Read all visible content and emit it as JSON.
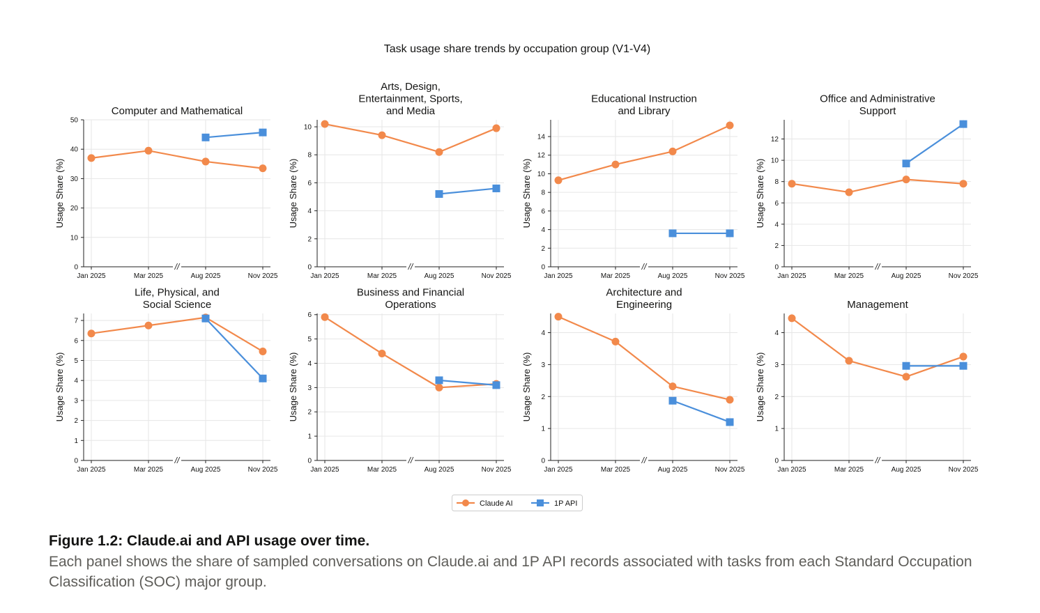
{
  "figure": {
    "suptitle": "Task usage share trends by occupation group (V1-V4)",
    "legend": [
      {
        "label": "Claude AI",
        "color": "#f2894b",
        "marker": "circle"
      },
      {
        "label": "1P API",
        "color": "#4a8fdb",
        "marker": "square"
      }
    ]
  },
  "caption": {
    "title": "Figure 1.2: Claude.ai and API usage over time.",
    "body": "Each panel shows the share of sampled conversations on Claude.ai and 1P API records associated with tasks from each Standard Occupation Classification (SOC) major group."
  },
  "chart_data": [
    {
      "type": "line",
      "title": "Computer and Mathematical",
      "ylabel": "Usage Share (%)",
      "x": [
        "Jan 2025",
        "Mar 2025",
        "Aug 2025",
        "Nov 2025"
      ],
      "axis_break": "//",
      "ylim": [
        0,
        50
      ],
      "yticks": [
        0,
        10,
        20,
        30,
        40,
        50
      ],
      "grid": true,
      "series": [
        {
          "name": "Claude AI",
          "values": [
            37.0,
            39.5,
            35.8,
            33.5
          ]
        },
        {
          "name": "1P API",
          "values": [
            null,
            null,
            44.0,
            45.7
          ]
        }
      ]
    },
    {
      "type": "line",
      "title": "Arts, Design,\nEntertainment, Sports,\nand Media",
      "ylabel": "Usage Share (%)",
      "x": [
        "Jan 2025",
        "Mar 2025",
        "Aug 2025",
        "Nov 2025"
      ],
      "axis_break": "//",
      "ylim": [
        0,
        10.5
      ],
      "yticks": [
        0,
        2,
        4,
        6,
        8,
        10
      ],
      "grid": true,
      "series": [
        {
          "name": "Claude AI",
          "values": [
            10.2,
            9.4,
            8.2,
            9.9
          ]
        },
        {
          "name": "1P API",
          "values": [
            null,
            null,
            5.2,
            5.6
          ]
        }
      ]
    },
    {
      "type": "line",
      "title": "Educational Instruction\nand Library",
      "ylabel": "Usage Share (%)",
      "x": [
        "Jan 2025",
        "Mar 2025",
        "Aug 2025",
        "Nov 2025"
      ],
      "axis_break": "//",
      "ylim": [
        0,
        15.8
      ],
      "yticks": [
        0,
        2,
        4,
        6,
        8,
        10,
        12,
        14
      ],
      "grid": true,
      "series": [
        {
          "name": "Claude AI",
          "values": [
            9.3,
            11.0,
            12.4,
            15.2
          ]
        },
        {
          "name": "1P API",
          "values": [
            null,
            null,
            3.6,
            3.6
          ]
        }
      ]
    },
    {
      "type": "line",
      "title": "Office and Administrative\nSupport",
      "ylabel": "Usage Share (%)",
      "x": [
        "Jan 2025",
        "Mar 2025",
        "Aug 2025",
        "Nov 2025"
      ],
      "axis_break": "//",
      "ylim": [
        0,
        13.8
      ],
      "yticks": [
        0,
        2,
        4,
        6,
        8,
        10,
        12
      ],
      "grid": true,
      "series": [
        {
          "name": "Claude AI",
          "values": [
            7.8,
            7.0,
            8.2,
            7.8
          ]
        },
        {
          "name": "1P API",
          "values": [
            null,
            null,
            9.7,
            13.4
          ]
        }
      ]
    },
    {
      "type": "line",
      "title": "Life, Physical, and\nSocial Science",
      "ylabel": "Usage Share (%)",
      "x": [
        "Jan 2025",
        "Mar 2025",
        "Aug 2025",
        "Nov 2025"
      ],
      "axis_break": "//",
      "ylim": [
        0,
        7.35
      ],
      "yticks": [
        0,
        1,
        2,
        3,
        4,
        5,
        6,
        7
      ],
      "grid": true,
      "series": [
        {
          "name": "Claude AI",
          "values": [
            6.35,
            6.75,
            7.15,
            5.45
          ]
        },
        {
          "name": "1P API",
          "values": [
            null,
            null,
            7.1,
            4.1
          ]
        }
      ]
    },
    {
      "type": "line",
      "title": "Business and Financial\nOperations",
      "ylabel": "Usage Share (%)",
      "x": [
        "Jan 2025",
        "Mar 2025",
        "Aug 2025",
        "Nov 2025"
      ],
      "axis_break": "//",
      "ylim": [
        0,
        6.05
      ],
      "yticks": [
        0,
        1,
        2,
        3,
        4,
        5,
        6
      ],
      "grid": true,
      "series": [
        {
          "name": "Claude AI",
          "values": [
            5.9,
            4.4,
            3.0,
            3.15
          ]
        },
        {
          "name": "1P API",
          "values": [
            null,
            null,
            3.3,
            3.1
          ]
        }
      ]
    },
    {
      "type": "line",
      "title": "Architecture and\nEngineering",
      "ylabel": "Usage Share (%)",
      "x": [
        "Jan 2025",
        "Mar 2025",
        "Aug 2025",
        "Nov 2025"
      ],
      "axis_break": "//",
      "ylim": [
        0,
        4.6
      ],
      "yticks": [
        0,
        1,
        2,
        3,
        4
      ],
      "grid": true,
      "series": [
        {
          "name": "Claude AI",
          "values": [
            4.5,
            3.72,
            2.32,
            1.9
          ]
        },
        {
          "name": "1P API",
          "values": [
            null,
            null,
            1.87,
            1.2
          ]
        }
      ]
    },
    {
      "type": "line",
      "title": "Management",
      "ylabel": "Usage Share (%)",
      "x": [
        "Jan 2025",
        "Mar 2025",
        "Aug 2025",
        "Nov 2025"
      ],
      "axis_break": "//",
      "ylim": [
        0,
        4.6
      ],
      "yticks": [
        0,
        1,
        2,
        3,
        4
      ],
      "grid": true,
      "series": [
        {
          "name": "Claude AI",
          "values": [
            4.45,
            3.12,
            2.62,
            3.25
          ]
        },
        {
          "name": "1P API",
          "values": [
            null,
            null,
            2.96,
            2.96
          ]
        }
      ]
    }
  ]
}
